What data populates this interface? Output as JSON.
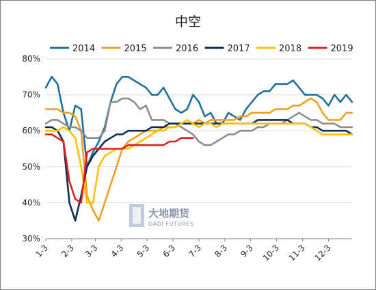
{
  "watermark": {
    "cn": "大地期货",
    "en": "DADI FUTURES",
    "color": "#8a96ad"
  },
  "chart_data": {
    "type": "line",
    "title": "中空",
    "xlabel": "",
    "ylabel": "",
    "y_unit": "%",
    "ylim": [
      30,
      80
    ],
    "yticks": [
      30,
      40,
      50,
      60,
      70,
      80
    ],
    "x_tick_labels": [
      "1-3",
      "2-3",
      "3-3",
      "4-3",
      "5-3",
      "6-3",
      "7-3",
      "8-3",
      "9-3",
      "10-3",
      "11-3",
      "12-3"
    ],
    "x_ticks_week": [
      1,
      5.4,
      9.4,
      13.8,
      18.2,
      22.6,
      27,
      31.4,
      35.8,
      40.2,
      44.6,
      49
    ],
    "x_range_week": [
      1,
      53
    ],
    "grid": "horizontal",
    "legend_position": "top",
    "series": [
      {
        "name": "2014",
        "color": "#1f6e9c",
        "x": [
          1,
          2,
          3,
          4,
          5,
          6,
          7,
          8,
          9,
          10,
          11,
          12,
          13,
          14,
          15,
          16,
          17,
          18,
          19,
          20,
          21,
          22,
          23,
          24,
          25,
          26,
          27,
          28,
          29,
          30,
          31,
          32,
          33,
          34,
          35,
          36,
          37,
          38,
          39,
          40,
          41,
          42,
          43,
          44,
          45,
          46,
          47,
          48,
          49,
          50,
          51,
          52,
          53
        ],
        "values": [
          72,
          75,
          73,
          65,
          60,
          67,
          66,
          50,
          54,
          57,
          61,
          68,
          73,
          75,
          75,
          74,
          73,
          72,
          70,
          70,
          72,
          69,
          66,
          65,
          66,
          70,
          68,
          64,
          65,
          62,
          62,
          65,
          64,
          63,
          66,
          68,
          70,
          71,
          71,
          73,
          73,
          73,
          74,
          72,
          70,
          70,
          70,
          69,
          67,
          70,
          68,
          70,
          68
        ]
      },
      {
        "name": "2015",
        "color": "#f0a020",
        "x": [
          1,
          2,
          3,
          4,
          5,
          6,
          7,
          8,
          9,
          10,
          11,
          12,
          13,
          14,
          15,
          16,
          17,
          18,
          19,
          20,
          21,
          22,
          23,
          24,
          25,
          26,
          27,
          28,
          29,
          30,
          31,
          32,
          33,
          34,
          35,
          36,
          37,
          38,
          39,
          40,
          41,
          42,
          43,
          44,
          45,
          46,
          47,
          48,
          49,
          50,
          51,
          52,
          53
        ],
        "values": [
          66,
          66,
          66,
          65,
          65,
          64,
          60,
          42,
          38,
          35,
          40,
          45,
          50,
          55,
          57,
          58,
          59,
          60,
          60,
          60,
          61,
          61,
          61,
          62,
          62,
          62,
          63,
          62,
          63,
          63,
          63,
          63,
          63,
          64,
          64,
          65,
          65,
          65,
          65,
          66,
          66,
          66,
          67,
          67,
          68,
          69,
          68,
          65,
          63,
          63,
          63,
          65,
          65
        ]
      },
      {
        "name": "2016",
        "color": "#8c8c8c",
        "x": [
          1,
          2,
          3,
          4,
          5,
          6,
          7,
          8,
          9,
          10,
          11,
          12,
          13,
          14,
          15,
          16,
          17,
          18,
          19,
          20,
          21,
          22,
          23,
          24,
          25,
          26,
          27,
          28,
          29,
          30,
          31,
          32,
          33,
          34,
          35,
          36,
          37,
          38,
          39,
          40,
          41,
          42,
          43,
          44,
          45,
          46,
          47,
          48,
          49,
          50,
          51,
          52,
          53
        ],
        "values": [
          62,
          63,
          63,
          62,
          61,
          61,
          60,
          58,
          58,
          58,
          60,
          68,
          68,
          69,
          69,
          68,
          66,
          67,
          63,
          63,
          63,
          62,
          62,
          61,
          60,
          59,
          57,
          56,
          56,
          57,
          58,
          59,
          59,
          60,
          60,
          60,
          61,
          61,
          62,
          62,
          62,
          63,
          64,
          65,
          64,
          63,
          63,
          62,
          62,
          62,
          61,
          61,
          61
        ]
      },
      {
        "name": "2017",
        "color": "#0d2d55",
        "x": [
          1,
          2,
          3,
          4,
          5,
          6,
          7,
          8,
          9,
          10,
          11,
          12,
          13,
          14,
          15,
          16,
          17,
          18,
          19,
          20,
          21,
          22,
          23,
          24,
          25,
          26,
          27,
          28,
          29,
          30,
          31,
          32,
          33,
          34,
          35,
          36,
          37,
          38,
          39,
          40,
          41,
          42,
          43,
          44,
          45,
          46,
          47,
          48,
          49,
          50,
          51,
          52,
          53
        ],
        "values": [
          61,
          61,
          60,
          57,
          40,
          35,
          42,
          50,
          53,
          55,
          57,
          58,
          59,
          59,
          60,
          60,
          60,
          60,
          61,
          61,
          61,
          62,
          62,
          62,
          62,
          62,
          62,
          62,
          62,
          62,
          62,
          62,
          62,
          62,
          62,
          62,
          63,
          63,
          63,
          63,
          63,
          63,
          62,
          62,
          62,
          61,
          61,
          60,
          60,
          60,
          60,
          60,
          59
        ]
      },
      {
        "name": "2018",
        "color": "#ffc000",
        "x": [
          1,
          2,
          3,
          4,
          5,
          6,
          7,
          8,
          9,
          10,
          11,
          12,
          13,
          14,
          15,
          16,
          17,
          18,
          19,
          20,
          21,
          22,
          23,
          24,
          25,
          26,
          27,
          28,
          29,
          30,
          31,
          32,
          33,
          34,
          35,
          36,
          37,
          38,
          39,
          40,
          41,
          42,
          43,
          44,
          45,
          46,
          47,
          48,
          49,
          50,
          51,
          52,
          53
        ],
        "values": [
          60,
          60,
          60,
          61,
          60,
          58,
          50,
          40,
          40,
          50,
          53,
          54,
          55,
          55,
          55,
          56,
          57,
          58,
          59,
          60,
          60,
          61,
          61,
          62,
          63,
          62,
          61,
          62,
          62,
          61,
          62,
          62,
          62,
          62,
          62,
          62,
          62,
          62,
          62,
          62,
          62,
          62,
          62,
          62,
          62,
          61,
          60,
          59,
          59,
          59,
          59,
          59,
          59
        ]
      },
      {
        "name": "2019",
        "color": "#e02020",
        "x": [
          1,
          2,
          3,
          4,
          5,
          6,
          7,
          8,
          9,
          10,
          11,
          12,
          13,
          14,
          15,
          16,
          17,
          18,
          19,
          20,
          21,
          22,
          23,
          24,
          25,
          26
        ],
        "values": [
          59,
          59,
          58,
          57,
          46,
          41,
          40,
          54,
          55,
          55,
          55,
          55,
          55,
          55,
          56,
          56,
          56,
          56,
          56,
          56,
          56,
          57,
          57,
          58,
          58,
          58
        ]
      }
    ]
  }
}
